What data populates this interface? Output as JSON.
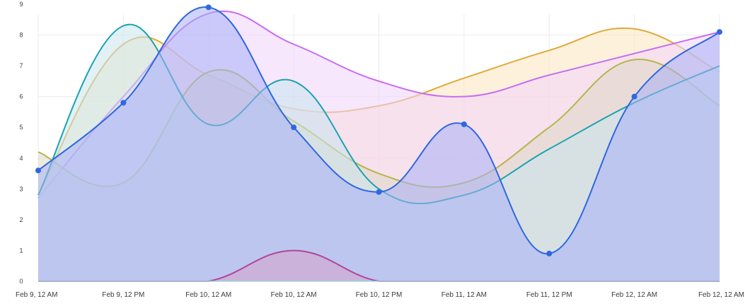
{
  "chart_data": {
    "type": "area",
    "title": "",
    "xlabel": "",
    "ylabel": "",
    "x_tick_labels": [
      "Feb 9, 12 AM",
      "Feb 9, 12 PM",
      "Feb 10, 12 AM",
      "Feb 10, 12 AM",
      "Feb 10, 12 PM",
      "Feb 11, 12 AM",
      "Feb 11, 12 PM",
      "Feb 12, 12 AM",
      "Feb 12, 12 AM"
    ],
    "y_tick_labels": [
      "0",
      "1",
      "2",
      "3",
      "4",
      "5",
      "6",
      "7",
      "8",
      "9"
    ],
    "ylim": [
      0,
      9
    ],
    "grid": true,
    "legend": "none",
    "series": [
      {
        "color": "#e0aa38",
        "fill": "#fbe6bd",
        "x": [
          0,
          1,
          2,
          3,
          4,
          5,
          6,
          7,
          8
        ],
        "y": [
          2.8,
          7.7,
          6.7,
          5.6,
          5.7,
          6.6,
          7.5,
          8.2,
          6.8
        ],
        "show_points": false
      },
      {
        "color": "#c86cf0",
        "fill": "#f0d3fb",
        "x": [
          0,
          1,
          2,
          3,
          4,
          5,
          6,
          7,
          8
        ],
        "y": [
          2.7,
          6.0,
          8.7,
          7.7,
          6.5,
          6.0,
          6.7,
          7.4,
          8.1
        ],
        "show_points": false
      },
      {
        "color": "#b8b54c",
        "fill": "#ded8c6",
        "x": [
          0,
          1,
          2,
          3,
          4,
          5,
          6,
          7,
          8
        ],
        "y": [
          4.2,
          3.2,
          6.8,
          5.2,
          3.5,
          3.2,
          5.0,
          7.2,
          5.7
        ],
        "show_points": false
      },
      {
        "color": "#1aa3b0",
        "fill": "#c9e6ee",
        "x": [
          0,
          1,
          2,
          3,
          4,
          5,
          6,
          7,
          8
        ],
        "y": [
          2.8,
          8.3,
          5.1,
          6.5,
          3.0,
          2.8,
          4.3,
          5.8,
          7.0
        ],
        "show_points": false
      },
      {
        "color": "#2f67e0",
        "fill": "#a7b0f5",
        "x": [
          0,
          1,
          2,
          3,
          4,
          5,
          6,
          7,
          8
        ],
        "y": [
          3.6,
          5.8,
          8.9,
          5.0,
          2.9,
          5.1,
          0.9,
          6.0,
          8.1
        ],
        "show_points": true
      },
      {
        "color": "#b0459c",
        "fill": "#d6a3cc",
        "x": [
          0,
          1,
          2,
          3,
          4,
          5,
          6,
          7,
          8
        ],
        "y": [
          0,
          0,
          0,
          1.0,
          0,
          0,
          0,
          0,
          0
        ],
        "show_points": false
      }
    ]
  }
}
